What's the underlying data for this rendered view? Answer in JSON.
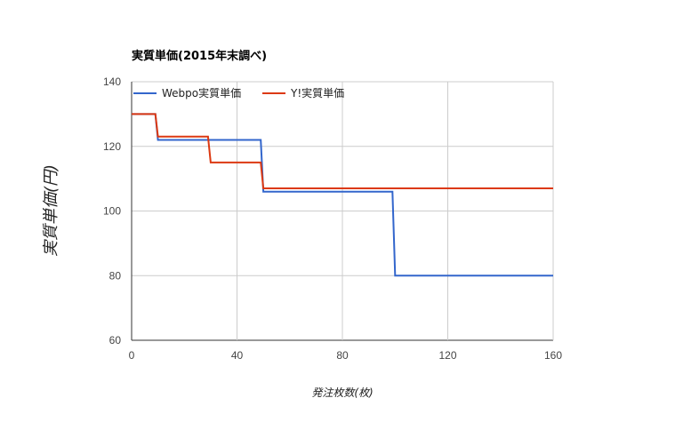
{
  "chart_data": {
    "type": "line",
    "title": "実質単価(2015年末調べ)",
    "xlabel": "発注枚数(枚)",
    "ylabel": "実質単価(円)",
    "xlim": [
      0,
      160
    ],
    "ylim": [
      60,
      140
    ],
    "x_ticks": [
      0,
      40,
      80,
      120,
      160
    ],
    "y_ticks": [
      60,
      80,
      100,
      120,
      140
    ],
    "grid": true,
    "legend_position": "top-left",
    "series": [
      {
        "name": "Webpo実質単価",
        "color": "#3366cc",
        "points": [
          [
            0,
            130
          ],
          [
            9,
            130
          ],
          [
            10,
            122
          ],
          [
            49,
            122
          ],
          [
            50,
            106
          ],
          [
            99,
            106
          ],
          [
            100,
            80
          ],
          [
            160,
            80
          ]
        ]
      },
      {
        "name": "Y!実質単価",
        "color": "#dc3912",
        "points": [
          [
            0,
            130
          ],
          [
            9,
            130
          ],
          [
            10,
            123
          ],
          [
            29,
            123
          ],
          [
            30,
            115
          ],
          [
            49,
            115
          ],
          [
            50,
            107
          ],
          [
            160,
            107
          ]
        ]
      }
    ]
  }
}
